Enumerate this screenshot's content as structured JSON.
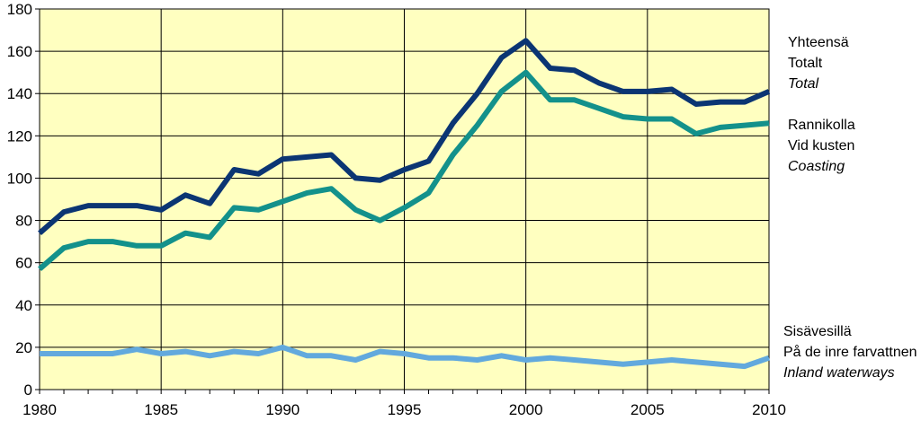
{
  "chart_data": {
    "type": "line",
    "title": "",
    "xlabel": "",
    "ylabel": "",
    "x": [
      1980,
      1981,
      1982,
      1983,
      1984,
      1985,
      1986,
      1987,
      1988,
      1989,
      1990,
      1991,
      1992,
      1993,
      1994,
      1995,
      1996,
      1997,
      1998,
      1999,
      2000,
      2001,
      2002,
      2003,
      2004,
      2005,
      2006,
      2007,
      2008,
      2009,
      2010
    ],
    "xlim": [
      1980,
      2010
    ],
    "ylim": [
      0,
      180
    ],
    "x_ticks": [
      "1980",
      "1985",
      "1990",
      "1995",
      "2000",
      "2005",
      "2010"
    ],
    "y_ticks": [
      "0",
      "20",
      "40",
      "60",
      "80",
      "100",
      "120",
      "140",
      "160",
      "180"
    ],
    "grid": true,
    "plot_background": "#ffffc0",
    "legend_placement": "right, beside each line",
    "series": [
      {
        "id": "total",
        "labels": [
          "Yhteensä",
          "Totalt",
          "Total"
        ],
        "color": "#0b3573",
        "values": [
          74,
          84,
          87,
          87,
          87,
          85,
          92,
          88,
          104,
          102,
          109,
          110,
          111,
          100,
          99,
          104,
          108,
          126,
          140,
          157,
          165,
          152,
          151,
          145,
          141,
          141,
          142,
          135,
          136,
          136,
          141
        ]
      },
      {
        "id": "coasting",
        "labels": [
          "Rannikolla",
          "Vid kusten",
          "Coasting"
        ],
        "color": "#13918b",
        "values": [
          57,
          67,
          70,
          70,
          68,
          68,
          74,
          72,
          86,
          85,
          89,
          93,
          95,
          85,
          80,
          86,
          93,
          111,
          125,
          141,
          150,
          137,
          137,
          133,
          129,
          128,
          128,
          121,
          124,
          125,
          126
        ]
      },
      {
        "id": "inland",
        "labels": [
          "Sisävesillä",
          "På de inre farvattnen",
          "Inland waterways"
        ],
        "color": "#62a9dd",
        "values": [
          17,
          17,
          17,
          17,
          19,
          17,
          18,
          16,
          18,
          17,
          20,
          16,
          16,
          14,
          18,
          17,
          15,
          15,
          14,
          16,
          14,
          15,
          14,
          13,
          12,
          13,
          14,
          13,
          12,
          11,
          15
        ]
      }
    ]
  }
}
